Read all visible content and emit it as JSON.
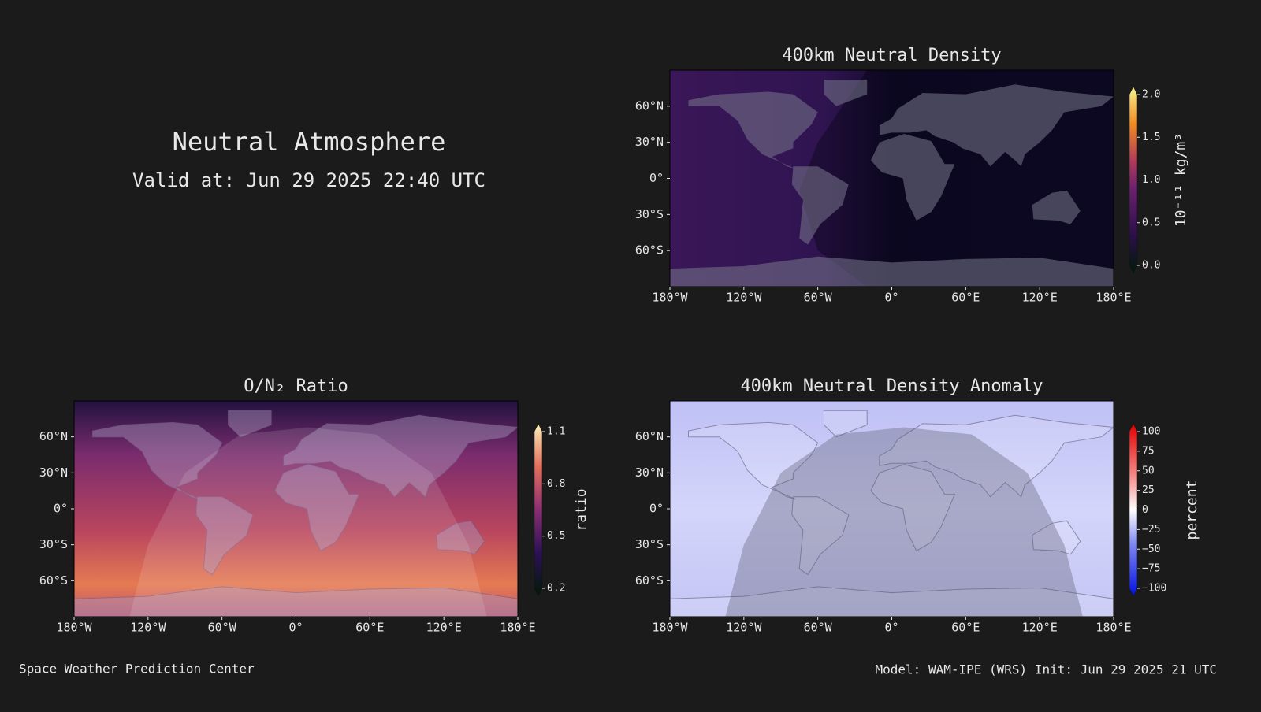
{
  "header": {
    "title": "Neutral Atmosphere",
    "subtitle": "Valid at: Jun 29 2025 22:40 UTC"
  },
  "map_axes": {
    "lonlim": [
      -180,
      180
    ],
    "latlim": [
      -90,
      90
    ],
    "lon_ticks": [
      {
        "value": -180,
        "label": "180°W"
      },
      {
        "value": -120,
        "label": "120°W"
      },
      {
        "value": -60,
        "label": "60°W"
      },
      {
        "value": 0,
        "label": "0°"
      },
      {
        "value": 60,
        "label": "60°E"
      },
      {
        "value": 120,
        "label": "120°E"
      },
      {
        "value": 180,
        "label": "180°E"
      }
    ],
    "lat_ticks": [
      {
        "value": 60,
        "label": "60°N"
      },
      {
        "value": 30,
        "label": "30°N"
      },
      {
        "value": 0,
        "label": "0°"
      },
      {
        "value": -30,
        "label": "30°S"
      },
      {
        "value": -60,
        "label": "60°S"
      }
    ]
  },
  "panels": [
    {
      "title": "400km Neutral Density",
      "colorbar": {
        "label": "10⁻¹¹ kg/m³",
        "lim": [
          0,
          2
        ],
        "ticks": [
          {
            "value": 0,
            "label": "0.0"
          },
          0.5,
          {
            "value": 1,
            "label": "1.0"
          },
          1.5,
          {
            "value": 2,
            "label": "2.0"
          }
        ]
      }
    },
    {
      "title": "O/N₂ Ratio",
      "colorbar": {
        "label": "ratio",
        "lim": [
          0.2,
          1.1
        ],
        "ticks": [
          0.2,
          0.5,
          0.8,
          1.1
        ]
      }
    },
    {
      "title": "400km Neutral Density Anomaly",
      "colorbar": {
        "label": "percent",
        "lim": [
          -100,
          100
        ],
        "ticks": [
          {
            "value": -100,
            "label": "−100"
          },
          {
            "value": -75,
            "label": "−75"
          },
          {
            "value": -50,
            "label": "−50"
          },
          {
            "value": -25,
            "label": "−25"
          },
          0,
          25,
          50,
          75,
          100
        ]
      }
    }
  ],
  "footer": {
    "left": "Space Weather Prediction Center",
    "right": "Model: WAM-IPE (WRS) Init: Jun 29 2025 21 UTC"
  }
}
